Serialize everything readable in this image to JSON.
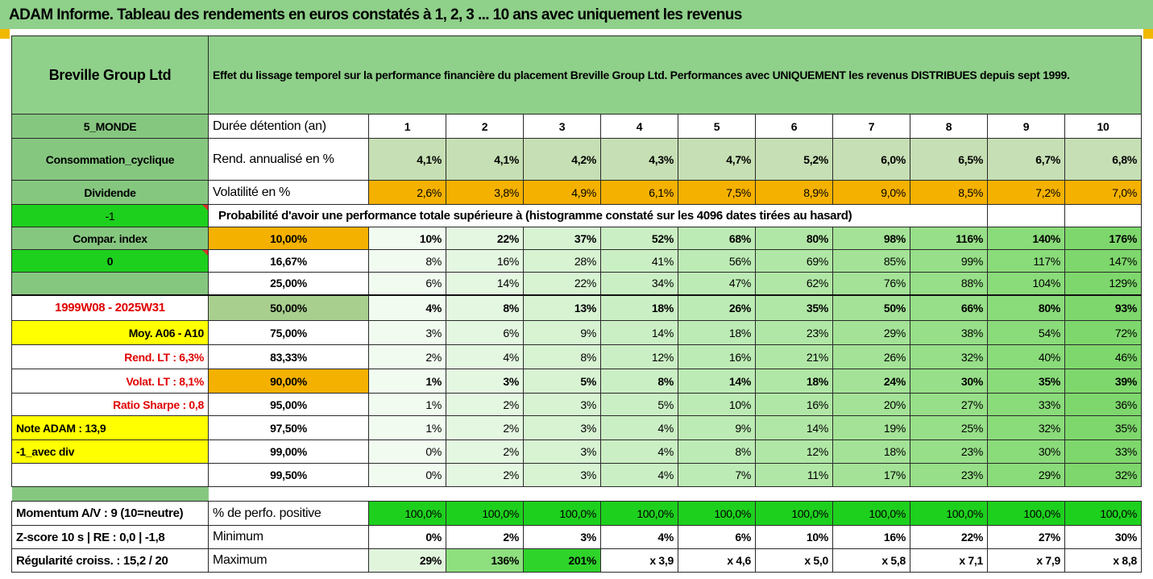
{
  "banner_title": "ADAM Informe. Tableau des rendements en euros constatés à 1, 2, 3 ... 10 ans avec uniquement les revenus",
  "company": "Breville Group Ltd",
  "description": "Effet du lissage temporel sur la performance financière du placement Breville Group Ltd. Performances avec UNIQUEMENT les revenus DISTRIBUES depuis sept 1999.",
  "left_labels": {
    "region": "5_MONDE",
    "sector": "Consommation_cyclique",
    "style": "Dividende",
    "signal": "-1",
    "compar_index": "Compar. index",
    "compar_value": "0",
    "period": "1999W08 - 2025W31",
    "moy": "Moy. A06 - A10",
    "rend_lt": "Rend. LT :   6,3%",
    "volat_lt": "Volat. LT :   8,1%",
    "sharpe": "Ratio Sharpe :   0,8",
    "note": "Note ADAM : 13,9",
    "avec_div": "-1_avec div",
    "momentum": "Momentum A/V : 9 (10=neutre)",
    "zscore": "Z-score 10 s  | RE : 0,0  | -1,8",
    "regularite": "Régularité croiss. : 15,2 / 20"
  },
  "duration_label": "Durée détention (an)",
  "years": [
    "1",
    "2",
    "3",
    "4",
    "5",
    "6",
    "7",
    "8",
    "9",
    "10"
  ],
  "rend": {
    "label": "Rend. annualisé en %",
    "values": [
      "4,1%",
      "4,1%",
      "4,2%",
      "4,3%",
      "4,7%",
      "5,2%",
      "6,0%",
      "6,5%",
      "6,7%",
      "6,8%"
    ]
  },
  "volat": {
    "label": "Volatilité en %",
    "values": [
      "2,6%",
      "3,8%",
      "4,9%",
      "6,1%",
      "7,5%",
      "8,9%",
      "9,0%",
      "8,5%",
      "7,2%",
      "7,0%"
    ]
  },
  "proba_header": "Probabilité d'avoir une performance totale supérieure à (histogramme constaté sur les 4096 dates tirées au hasard)",
  "proba_rows": [
    {
      "p": "10,00%",
      "values": [
        "10%",
        "22%",
        "37%",
        "52%",
        "68%",
        "80%",
        "98%",
        "116%",
        "140%",
        "176%"
      ]
    },
    {
      "p": "16,67%",
      "values": [
        "8%",
        "16%",
        "28%",
        "41%",
        "56%",
        "69%",
        "85%",
        "99%",
        "117%",
        "147%"
      ]
    },
    {
      "p": "25,00%",
      "values": [
        "6%",
        "14%",
        "22%",
        "34%",
        "47%",
        "62%",
        "76%",
        "88%",
        "104%",
        "129%"
      ]
    },
    {
      "p": "50,00%",
      "values": [
        "4%",
        "8%",
        "13%",
        "18%",
        "26%",
        "35%",
        "50%",
        "66%",
        "80%",
        "93%"
      ]
    },
    {
      "p": "75,00%",
      "values": [
        "3%",
        "6%",
        "9%",
        "14%",
        "18%",
        "23%",
        "29%",
        "38%",
        "54%",
        "72%"
      ]
    },
    {
      "p": "83,33%",
      "values": [
        "2%",
        "4%",
        "8%",
        "12%",
        "16%",
        "21%",
        "26%",
        "32%",
        "40%",
        "46%"
      ]
    },
    {
      "p": "90,00%",
      "values": [
        "1%",
        "3%",
        "5%",
        "8%",
        "14%",
        "18%",
        "24%",
        "30%",
        "35%",
        "39%"
      ]
    },
    {
      "p": "95,00%",
      "values": [
        "1%",
        "2%",
        "3%",
        "5%",
        "10%",
        "16%",
        "20%",
        "27%",
        "33%",
        "36%"
      ]
    },
    {
      "p": "97,50%",
      "values": [
        "1%",
        "2%",
        "3%",
        "4%",
        "9%",
        "14%",
        "19%",
        "25%",
        "32%",
        "35%"
      ]
    },
    {
      "p": "99,00%",
      "values": [
        "0%",
        "2%",
        "3%",
        "4%",
        "8%",
        "12%",
        "18%",
        "23%",
        "30%",
        "33%"
      ]
    },
    {
      "p": "99,50%",
      "values": [
        "0%",
        "2%",
        "3%",
        "4%",
        "7%",
        "11%",
        "17%",
        "23%",
        "29%",
        "32%"
      ]
    }
  ],
  "positive": {
    "label": "% de perfo. positive",
    "values": [
      "100,0%",
      "100,0%",
      "100,0%",
      "100,0%",
      "100,0%",
      "100,0%",
      "100,0%",
      "100,0%",
      "100,0%",
      "100,0%"
    ]
  },
  "minimum": {
    "label": "Minimum",
    "values": [
      "0%",
      "2%",
      "3%",
      "4%",
      "6%",
      "10%",
      "16%",
      "22%",
      "27%",
      "30%"
    ]
  },
  "maximum": {
    "label": "Maximum",
    "values": [
      "29%",
      "136%",
      "201%",
      "x 3,9",
      "x 4,6",
      "x 5,0",
      "x 5,8",
      "x 7,1",
      "x 7,9",
      "x 8,8"
    ]
  },
  "colors": {
    "banner": "#8fd08a",
    "header_green": "#8fd08a",
    "label_green": "#86c780",
    "rend_fill": "#c6dfb4",
    "volat_orange": "#f5b100",
    "bright_green": "#1ed01e",
    "yellow": "#ffff00",
    "red_text": "#e00000"
  }
}
